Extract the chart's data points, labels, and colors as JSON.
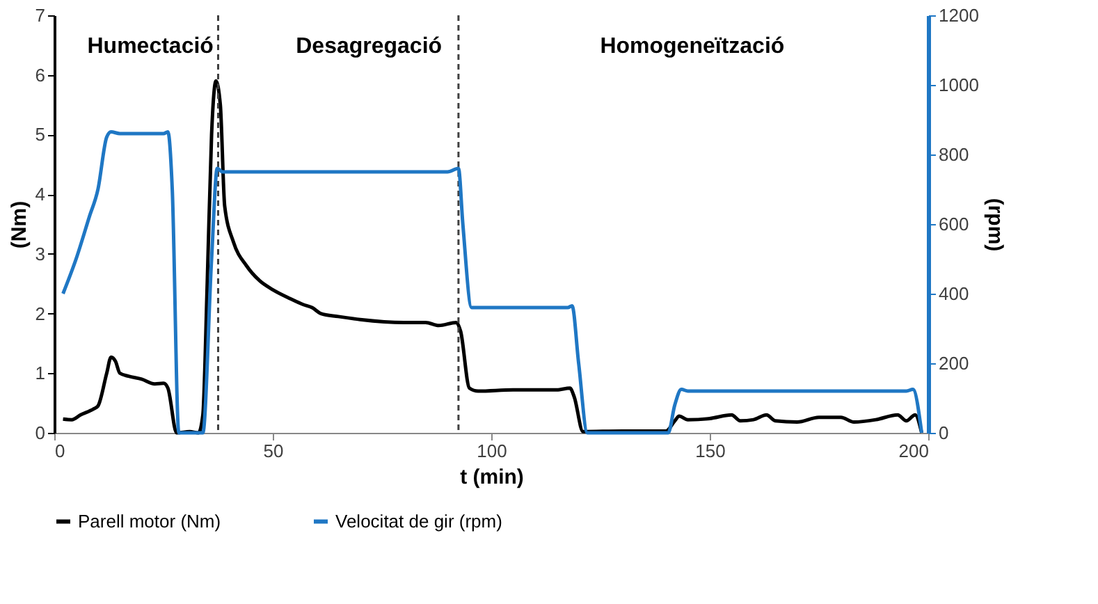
{
  "chart_data": {
    "type": "line",
    "xlabel": "t (min)",
    "ylabel": "(Nm)",
    "y2label": "(rpm)",
    "xlim": [
      0,
      200
    ],
    "xticks": [
      0,
      50,
      100,
      150,
      200
    ],
    "ylim": [
      0,
      7
    ],
    "yticks": [
      0,
      1,
      2,
      3,
      4,
      5,
      6,
      7
    ],
    "y2lim": [
      0,
      1200
    ],
    "y2ticks": [
      0,
      200,
      400,
      600,
      800,
      1000,
      1200
    ],
    "grid": false,
    "legend": "bottom",
    "marker": "none",
    "line_style": "solid",
    "annotations": [
      "Humectació",
      "Desagregació",
      "Homogeneïtzació"
    ],
    "ref_lines": [
      {
        "axis": "x",
        "value": 37.5,
        "line_style": "dashed",
        "color": "#404040"
      },
      {
        "axis": "x",
        "value": 92.5,
        "line_style": "dashed",
        "color": "#404040"
      }
    ],
    "series": [
      {
        "name": "Parell motor (Nm)",
        "color": "#000000",
        "axis": "y",
        "x": [
          2,
          4,
          6,
          9,
          10,
          12,
          13,
          14,
          15,
          17,
          20,
          23,
          25,
          26,
          28,
          31,
          33,
          34,
          35,
          36,
          37,
          38,
          39,
          41,
          44,
          47,
          50,
          54,
          57,
          59,
          61,
          65,
          70,
          80,
          85,
          88,
          92,
          93,
          95,
          97,
          105,
          115,
          118,
          119,
          121,
          130,
          140,
          142,
          143,
          145,
          150,
          155,
          157,
          160,
          163,
          165,
          170,
          175,
          180,
          183,
          188,
          193,
          195,
          197,
          198.5
        ],
        "values": [
          0.23,
          0.22,
          0.3,
          0.4,
          0.45,
          1.0,
          1.27,
          1.2,
          1.0,
          0.95,
          0.9,
          0.82,
          0.83,
          0.75,
          0,
          0.02,
          0,
          0.3,
          2.5,
          5.0,
          5.9,
          5.5,
          3.8,
          3.2,
          2.8,
          2.55,
          2.4,
          2.25,
          2.15,
          2.1,
          2.0,
          1.95,
          1.9,
          1.85,
          1.85,
          1.8,
          1.85,
          1.7,
          0.75,
          0.7,
          0.72,
          0.72,
          0.75,
          0.6,
          0.02,
          0.03,
          0.03,
          0.2,
          0.28,
          0.22,
          0.24,
          0.3,
          0.2,
          0.22,
          0.3,
          0.2,
          0.18,
          0.26,
          0.26,
          0.18,
          0.22,
          0.3,
          0.2,
          0.3,
          0
        ]
      },
      {
        "name": "Velocitat de gir (rpm)",
        "color": "#1f77c4",
        "axis": "y2",
        "x": [
          2,
          5,
          8,
          10,
          12,
          13,
          15,
          20,
          25,
          26,
          27,
          28.5,
          31,
          34,
          36,
          37.3,
          38.5,
          50,
          70,
          90,
          92.5,
          93.5,
          95.5,
          100,
          110,
          117.5,
          118.5,
          120,
          122,
          130,
          140.5,
          142,
          143.5,
          145,
          160,
          180,
          195,
          196.5,
          198.5
        ],
        "values": [
          400,
          500,
          620,
          700,
          850,
          865,
          860,
          860,
          860,
          865,
          700,
          0,
          0,
          0,
          500,
          760,
          750,
          750,
          750,
          750,
          760,
          600,
          360,
          360,
          360,
          360,
          365,
          200,
          0,
          0,
          0,
          80,
          125,
          120,
          120,
          120,
          120,
          125,
          0
        ]
      }
    ]
  }
}
